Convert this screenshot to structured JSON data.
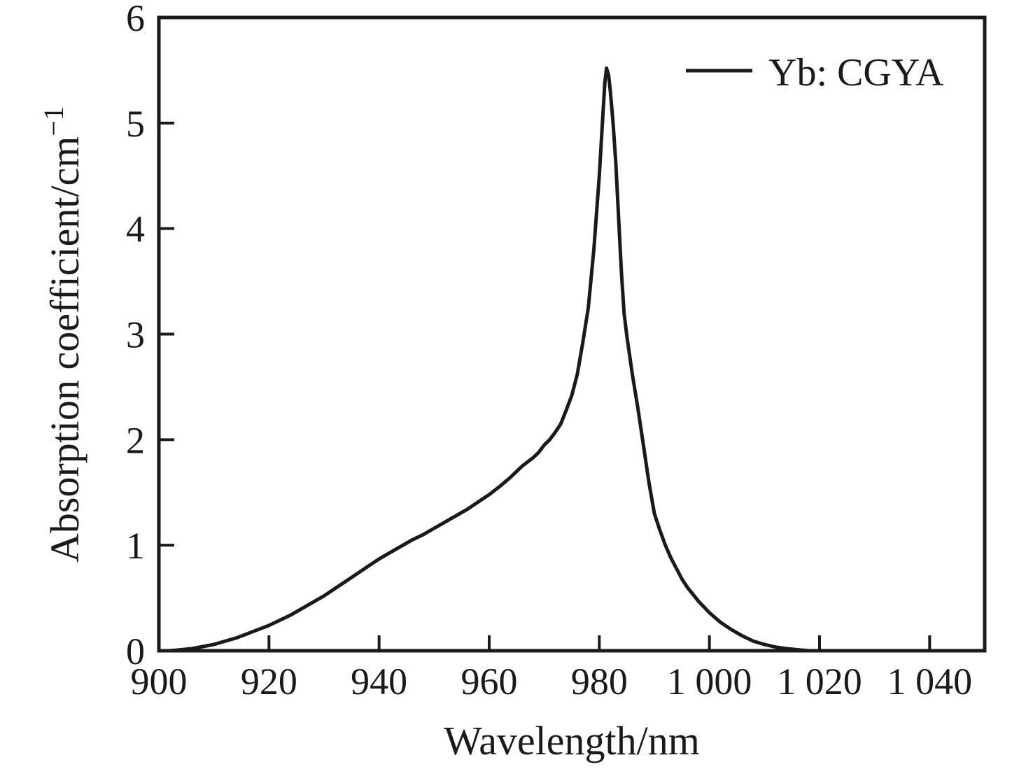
{
  "chart_data": {
    "type": "line",
    "title": "",
    "xlabel": "Wavelength/nm",
    "ylabel_base": "Absorption coefficient/cm",
    "ylabel_sup": "−1",
    "xlim": [
      900,
      1050
    ],
    "ylim": [
      0,
      6
    ],
    "grid": false,
    "x_ticks": [
      {
        "value": 900,
        "label": "900"
      },
      {
        "value": 920,
        "label": "920"
      },
      {
        "value": 940,
        "label": "940"
      },
      {
        "value": 960,
        "label": "960"
      },
      {
        "value": 980,
        "label": "980"
      },
      {
        "value": 1000,
        "label": "1 000"
      },
      {
        "value": 1020,
        "label": "1 020"
      },
      {
        "value": 1040,
        "label": "1 040"
      }
    ],
    "y_ticks": [
      {
        "value": 0,
        "label": "0"
      },
      {
        "value": 1,
        "label": "1"
      },
      {
        "value": 2,
        "label": "2"
      },
      {
        "value": 3,
        "label": "3"
      },
      {
        "value": 4,
        "label": "4"
      },
      {
        "value": 5,
        "label": "5"
      },
      {
        "value": 6,
        "label": "6"
      }
    ],
    "legend": {
      "position": "top-right",
      "entries": [
        {
          "label": "Yb: CGYA",
          "color": "#1a1a1a"
        }
      ]
    },
    "series": [
      {
        "name": "Yb: CGYA",
        "color": "#1a1a1a",
        "peak": {
          "x": 981.3,
          "y": 5.52
        },
        "points": [
          [
            902,
            0.0
          ],
          [
            904,
            0.01
          ],
          [
            906,
            0.02
          ],
          [
            908,
            0.04
          ],
          [
            910,
            0.06
          ],
          [
            912,
            0.09
          ],
          [
            914,
            0.12
          ],
          [
            916,
            0.16
          ],
          [
            918,
            0.2
          ],
          [
            920,
            0.24
          ],
          [
            922,
            0.29
          ],
          [
            924,
            0.34
          ],
          [
            926,
            0.4
          ],
          [
            928,
            0.46
          ],
          [
            930,
            0.52
          ],
          [
            932,
            0.59
          ],
          [
            934,
            0.66
          ],
          [
            936,
            0.73
          ],
          [
            938,
            0.8
          ],
          [
            940,
            0.87
          ],
          [
            942,
            0.93
          ],
          [
            944,
            0.99
          ],
          [
            946,
            1.05
          ],
          [
            948,
            1.1
          ],
          [
            950,
            1.16
          ],
          [
            952,
            1.22
          ],
          [
            954,
            1.28
          ],
          [
            956,
            1.34
          ],
          [
            958,
            1.41
          ],
          [
            960,
            1.48
          ],
          [
            962,
            1.56
          ],
          [
            964,
            1.65
          ],
          [
            966,
            1.75
          ],
          [
            968,
            1.83
          ],
          [
            969,
            1.88
          ],
          [
            970,
            1.95
          ],
          [
            971,
            2.0
          ],
          [
            972,
            2.07
          ],
          [
            973,
            2.15
          ],
          [
            974,
            2.28
          ],
          [
            975,
            2.42
          ],
          [
            976,
            2.62
          ],
          [
            977,
            2.92
          ],
          [
            978,
            3.25
          ],
          [
            979,
            3.8
          ],
          [
            980,
            4.5
          ],
          [
            980.5,
            4.95
          ],
          [
            981,
            5.38
          ],
          [
            981.3,
            5.52
          ],
          [
            981.7,
            5.45
          ],
          [
            982,
            5.3
          ],
          [
            982.5,
            5.0
          ],
          [
            983,
            4.62
          ],
          [
            984,
            3.6
          ],
          [
            984.5,
            3.2
          ],
          [
            985,
            2.98
          ],
          [
            986,
            2.62
          ],
          [
            987,
            2.3
          ],
          [
            988,
            1.95
          ],
          [
            989,
            1.6
          ],
          [
            990,
            1.3
          ],
          [
            991,
            1.14
          ],
          [
            992,
            1.0
          ],
          [
            993,
            0.88
          ],
          [
            994,
            0.78
          ],
          [
            995,
            0.68
          ],
          [
            996,
            0.6
          ],
          [
            998,
            0.47
          ],
          [
            1000,
            0.36
          ],
          [
            1002,
            0.27
          ],
          [
            1004,
            0.2
          ],
          [
            1006,
            0.14
          ],
          [
            1008,
            0.09
          ],
          [
            1010,
            0.06
          ],
          [
            1012,
            0.035
          ],
          [
            1014,
            0.02
          ],
          [
            1016,
            0.01
          ],
          [
            1018,
            0.0
          ]
        ]
      }
    ],
    "colors": {
      "line": "#1a1a1a",
      "axis": "#1a1a1a",
      "background": "#ffffff"
    }
  }
}
